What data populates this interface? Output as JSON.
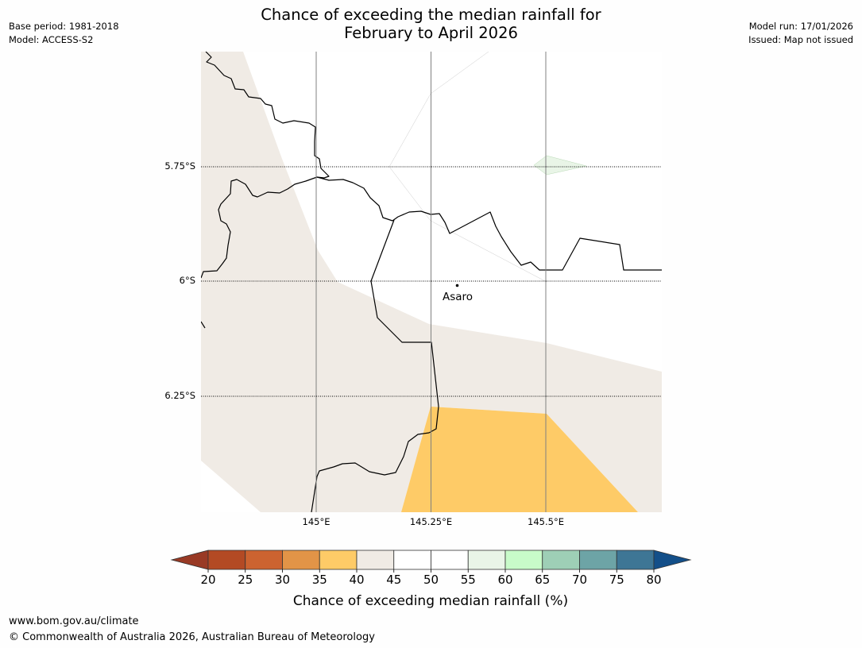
{
  "header": {
    "title_line1": "Chance of exceeding the median rainfall for",
    "title_line2": "February to April 2026",
    "base_period": "Base period: 1981-2018",
    "model": "Model: ACCESS-S2",
    "model_run": "Model run: 17/01/2026",
    "issued": "Issued: Map not issued"
  },
  "map": {
    "lat_labels": [
      "5.75°S",
      "6°S",
      "6.25°S"
    ],
    "lon_labels": [
      "145°E",
      "145.25°E",
      "145.5°E"
    ],
    "place": {
      "name": "Asaro",
      "lon": 145.3,
      "lat": -6.01
    },
    "colors": {
      "land_40_45": "#f0ebe5",
      "land_35_40": "#fecb67",
      "land_55_60": "#e9f5e7"
    }
  },
  "legend": {
    "title": "Chance of exceeding median rainfall (%)",
    "ticks": [
      "20",
      "25",
      "30",
      "35",
      "40",
      "45",
      "50",
      "55",
      "60",
      "65",
      "70",
      "75",
      "80"
    ],
    "colors": [
      "#993a25",
      "#b34a24",
      "#cc6330",
      "#e29447",
      "#fecb67",
      "#f0ebe5",
      "#ffffff",
      "#ffffff",
      "#e9f5e7",
      "#c8fbc9",
      "#9ecfb6",
      "#6da4a6",
      "#3e7695",
      "#134f89"
    ]
  },
  "footer": {
    "url": "www.bom.gov.au/climate",
    "copyright": "© Commonwealth of Australia 2026, Australian Bureau of Meteorology"
  }
}
